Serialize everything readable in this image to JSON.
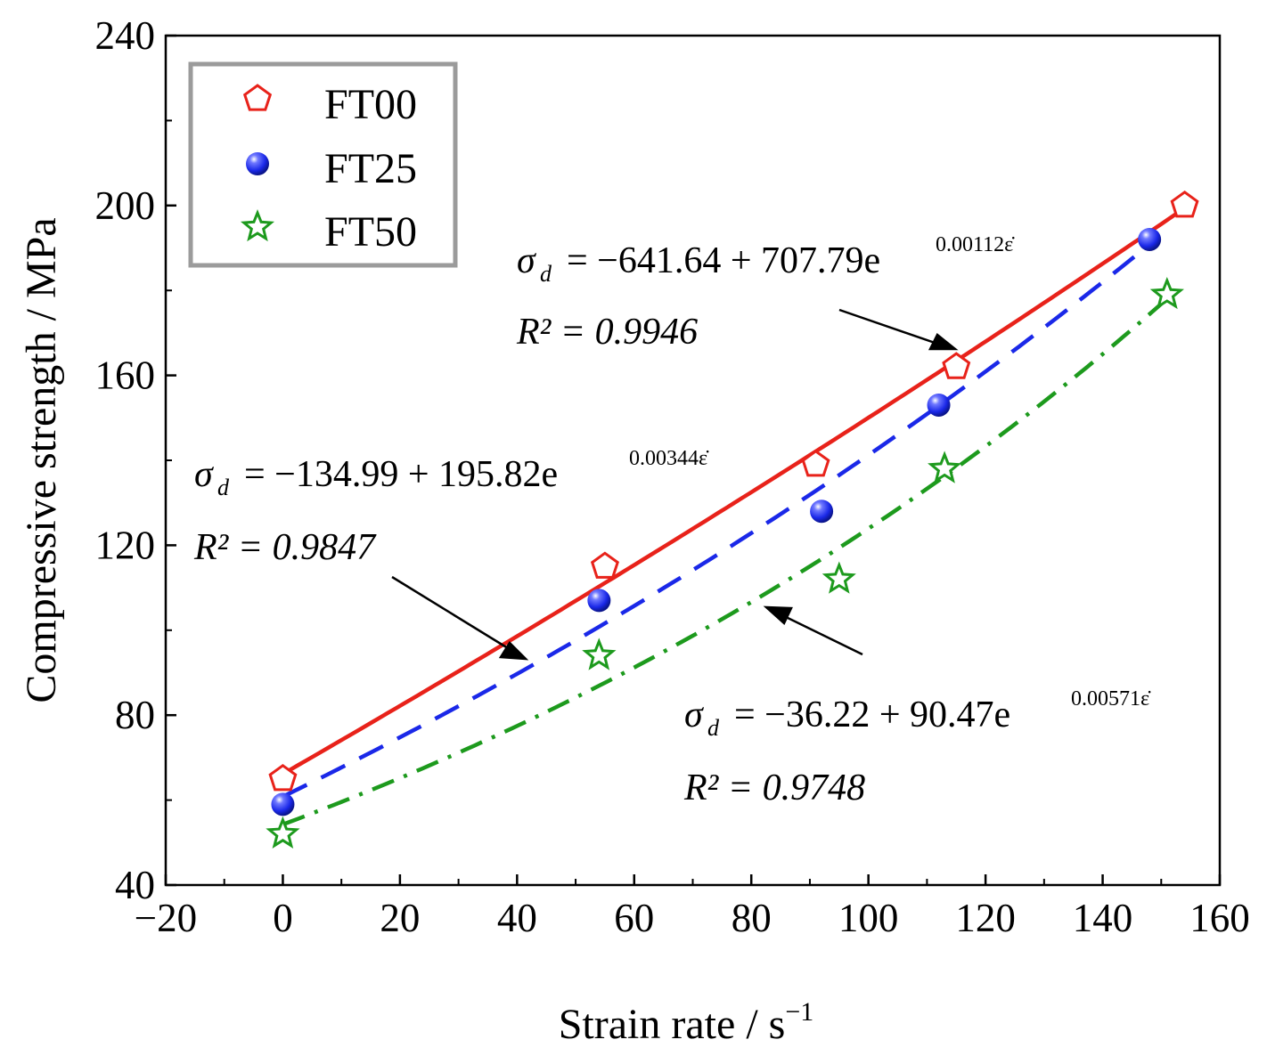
{
  "chart_data": {
    "type": "scatter",
    "xlabel": "Strain rate / s",
    "xlabel_sup": "−1",
    "ylabel": "Compressive strength / MPa",
    "xlim": [
      -20,
      160
    ],
    "ylim": [
      40,
      240
    ],
    "xticks": [
      -20,
      0,
      20,
      40,
      60,
      80,
      100,
      120,
      140,
      160
    ],
    "xtick_labels": [
      "−20",
      "0",
      "20",
      "40",
      "60",
      "80",
      "100",
      "120",
      "140",
      "160"
    ],
    "yticks": [
      40,
      80,
      120,
      160,
      200,
      240
    ],
    "ytick_labels": [
      "40",
      "80",
      "120",
      "160",
      "200",
      "240"
    ],
    "grid": false,
    "legend_position": "top-left",
    "series": [
      {
        "name": "FT00",
        "color": "#e8221a",
        "marker": "pentagon",
        "line_style": "solid",
        "x": [
          0,
          55,
          91,
          115,
          154
        ],
        "y": [
          65,
          115,
          139,
          162,
          200
        ],
        "fit": {
          "a": -641.64,
          "b": 707.79,
          "c": 0.00112
        },
        "equation": {
          "lhs": "σ",
          "sub": "d",
          "rhs": "= −641.64 + 707.79e",
          "exponent": "0.00112ε̇",
          "r2": "R² = 0.9946"
        }
      },
      {
        "name": "FT25",
        "color": "#1a28e8",
        "marker": "sphere",
        "line_style": "dashed",
        "x": [
          0,
          54,
          92,
          112,
          148
        ],
        "y": [
          59,
          107,
          128,
          153,
          192
        ],
        "fit": {
          "a": -134.99,
          "b": 195.82,
          "c": 0.00344
        },
        "equation": {
          "lhs": "σ",
          "sub": "d",
          "rhs": "= −134.99 + 195.82e",
          "exponent": "0.00344ε̇",
          "r2": "R² = 0.9847"
        }
      },
      {
        "name": "FT50",
        "color": "#1d9a1d",
        "marker": "star",
        "line_style": "dash-dot",
        "x": [
          0,
          54,
          95,
          113,
          151
        ],
        "y": [
          52,
          94,
          112,
          138,
          179
        ],
        "fit": {
          "a": -36.22,
          "b": 90.47,
          "c": 0.00571
        },
        "equation": {
          "lhs": "σ",
          "sub": "d",
          "rhs": "= −36.22 + 90.47e",
          "exponent": "0.00571ε̇",
          "r2": "R² = 0.9748"
        }
      }
    ]
  }
}
